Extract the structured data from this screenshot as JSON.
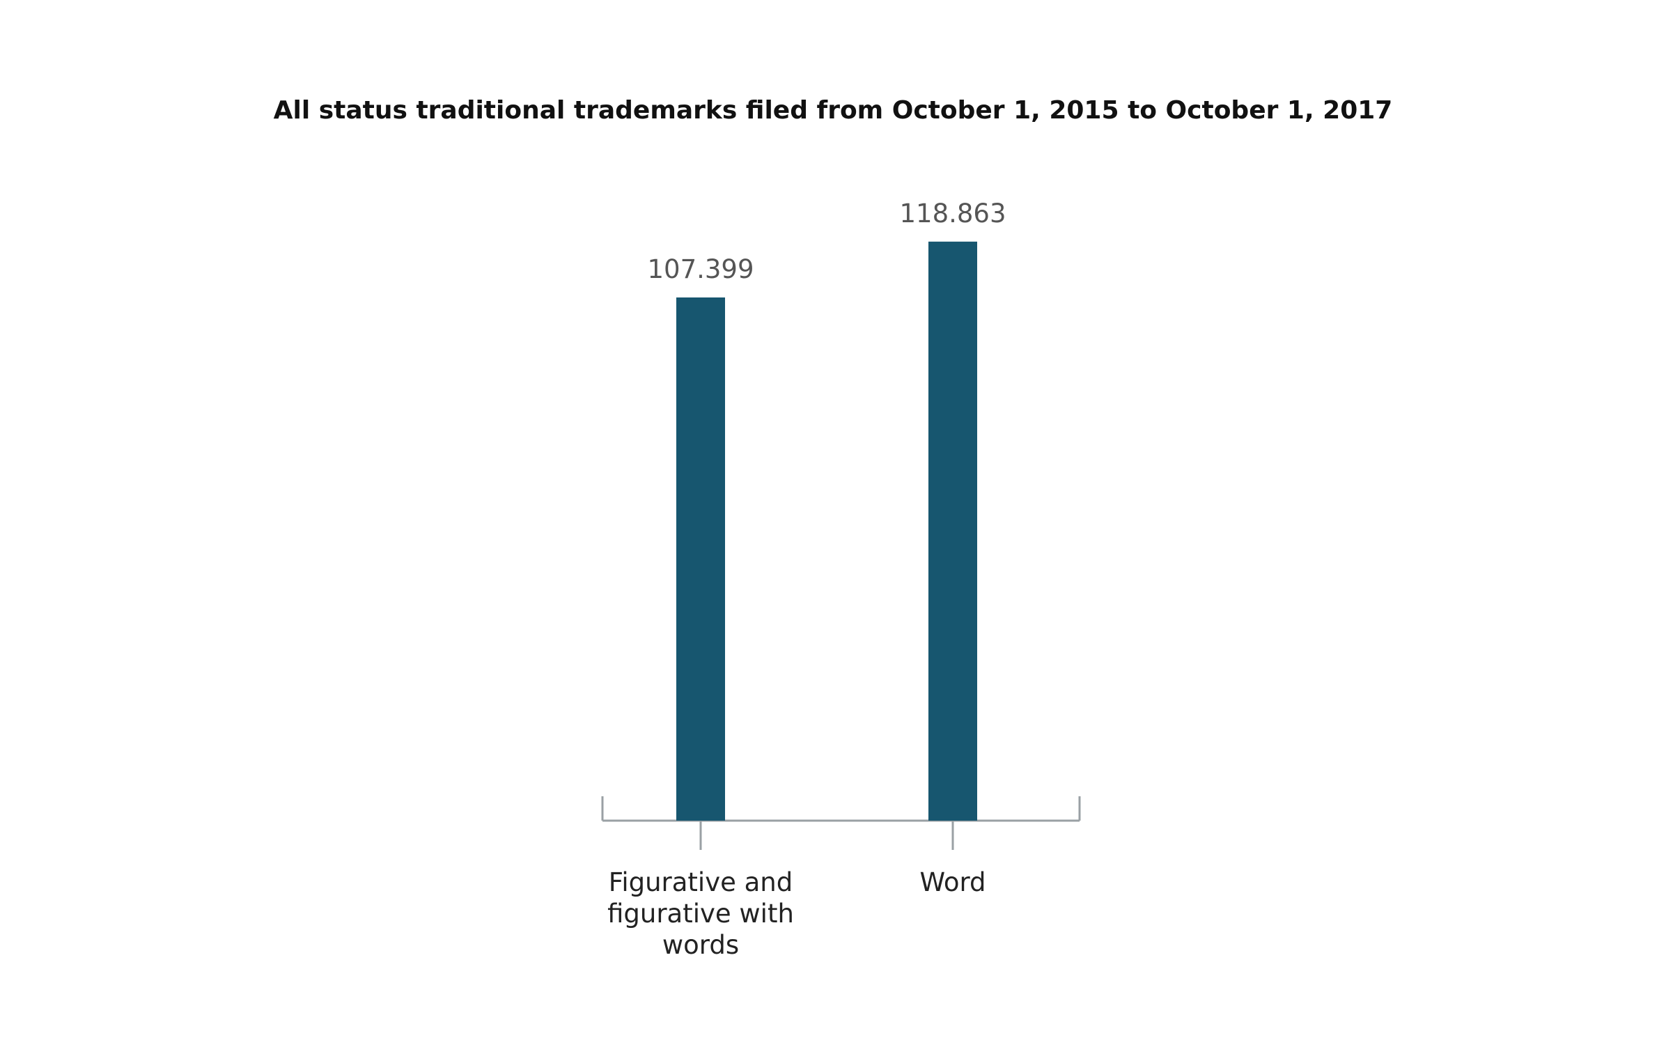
{
  "chart_data": {
    "type": "bar",
    "title": "All status traditional trademarks filed from October 1, 2015 to October 1, 2017",
    "categories": [
      [
        "Figurative and",
        "figurative with",
        "words"
      ],
      [
        "Word"
      ]
    ],
    "category_names": [
      "Figurative and figurative with words",
      "Word"
    ],
    "values": [
      107.399,
      118.863
    ],
    "value_labels": [
      "107.399",
      "118.863"
    ],
    "ylim": [
      0,
      125
    ],
    "xlabel": "",
    "ylabel": "",
    "grid": false,
    "legend": "none",
    "colors": {
      "bar": "#17566f",
      "axis": "#9aa0a4",
      "value_label": "#555555",
      "category_label": "#222222"
    }
  }
}
